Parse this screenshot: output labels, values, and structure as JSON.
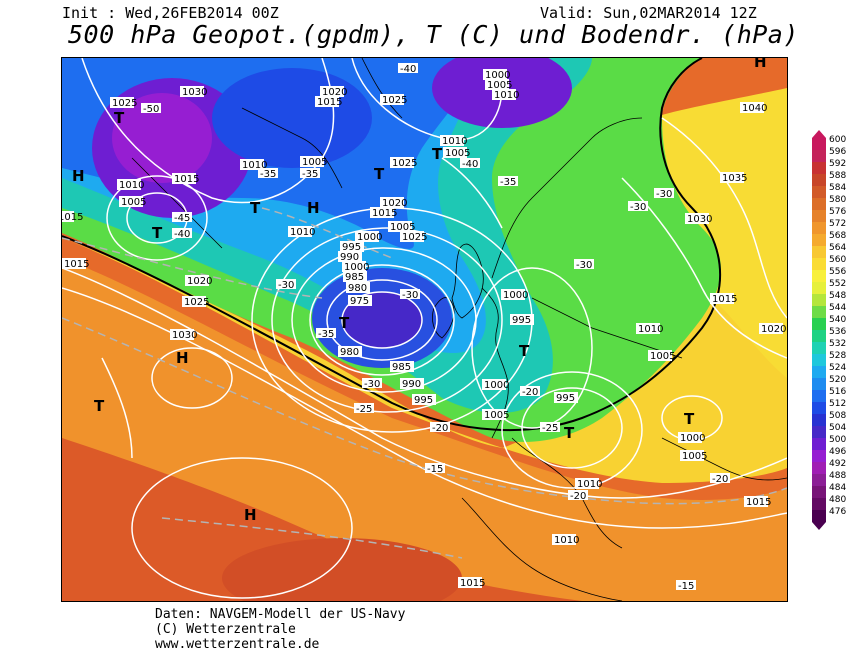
{
  "header": {
    "init": "Init : Wed,26FEB2014 00Z",
    "valid": "Valid: Sun,02MAR2014 12Z",
    "title": "500 hPa Geopot.(gpdm), T (C) und Bodendr. (hPa)"
  },
  "credits": {
    "line1": "Daten: NAVGEM-Modell der US-Navy",
    "line2": "(C) Wetterzentrale",
    "line3": "www.wetterzentrale.de"
  },
  "colorbar": {
    "levels": [
      "600",
      "596",
      "592",
      "588",
      "584",
      "580",
      "576",
      "572",
      "568",
      "564",
      "560",
      "556",
      "552",
      "548",
      "544",
      "540",
      "536",
      "532",
      "528",
      "524",
      "520",
      "516",
      "512",
      "508",
      "504",
      "500",
      "496",
      "492",
      "488",
      "484",
      "480",
      "476"
    ],
    "colors": [
      "#c8185e",
      "#c4245a",
      "#c83232",
      "#c84628",
      "#d25a28",
      "#dc6e28",
      "#e6822a",
      "#f0962c",
      "#f5aa2e",
      "#f8c832",
      "#fadc34",
      "#f8f03c",
      "#e6f03c",
      "#b4e63c",
      "#6edc46",
      "#28d050",
      "#1ed284",
      "#1ed2b4",
      "#1ec8dc",
      "#1eaaf0",
      "#1e8cf0",
      "#1e6ef0",
      "#1e4be6",
      "#2832d2",
      "#4628c8",
      "#6e1ed2",
      "#961ed2",
      "#a01eb4",
      "#8c1e96",
      "#781478",
      "#640a64",
      "#4a0050"
    ]
  },
  "map": {
    "pressure_labels": [
      "1025",
      "1030",
      "1020",
      "1015",
      "1025",
      "1000",
      "1005",
      "1010",
      "1040",
      "1010",
      "1005",
      "1010",
      "1005",
      "1025",
      "1035",
      "1015",
      "1010",
      "1005",
      "1020",
      "1015",
      "1000",
      "1010",
      "1005",
      "1030",
      "1025",
      "1020",
      "995",
      "990",
      "1000",
      "985",
      "980",
      "975",
      "1025",
      "1015",
      "1015",
      "1030",
      "980",
      "985",
      "990",
      "995",
      "1000",
      "1005",
      "1010",
      "1015",
      "1020",
      "995",
      "1000",
      "1005",
      "995",
      "1000",
      "1005",
      "1010",
      "1015",
      "1010",
      "1015"
    ],
    "temperature_labels": [
      "-50",
      "-40",
      "-35",
      "-35",
      "-45",
      "-40",
      "-40",
      "-35",
      "-30",
      "-30",
      "-30",
      "-30",
      "-35",
      "-30",
      "-30",
      "-25",
      "-20",
      "-20",
      "-25",
      "-15",
      "-20",
      "-20",
      "-15"
    ],
    "centers": [
      "H",
      "T",
      "T",
      "T",
      "T",
      "H",
      "T",
      "H",
      "T",
      "H",
      "T",
      "T",
      "T",
      "T",
      "H"
    ]
  }
}
